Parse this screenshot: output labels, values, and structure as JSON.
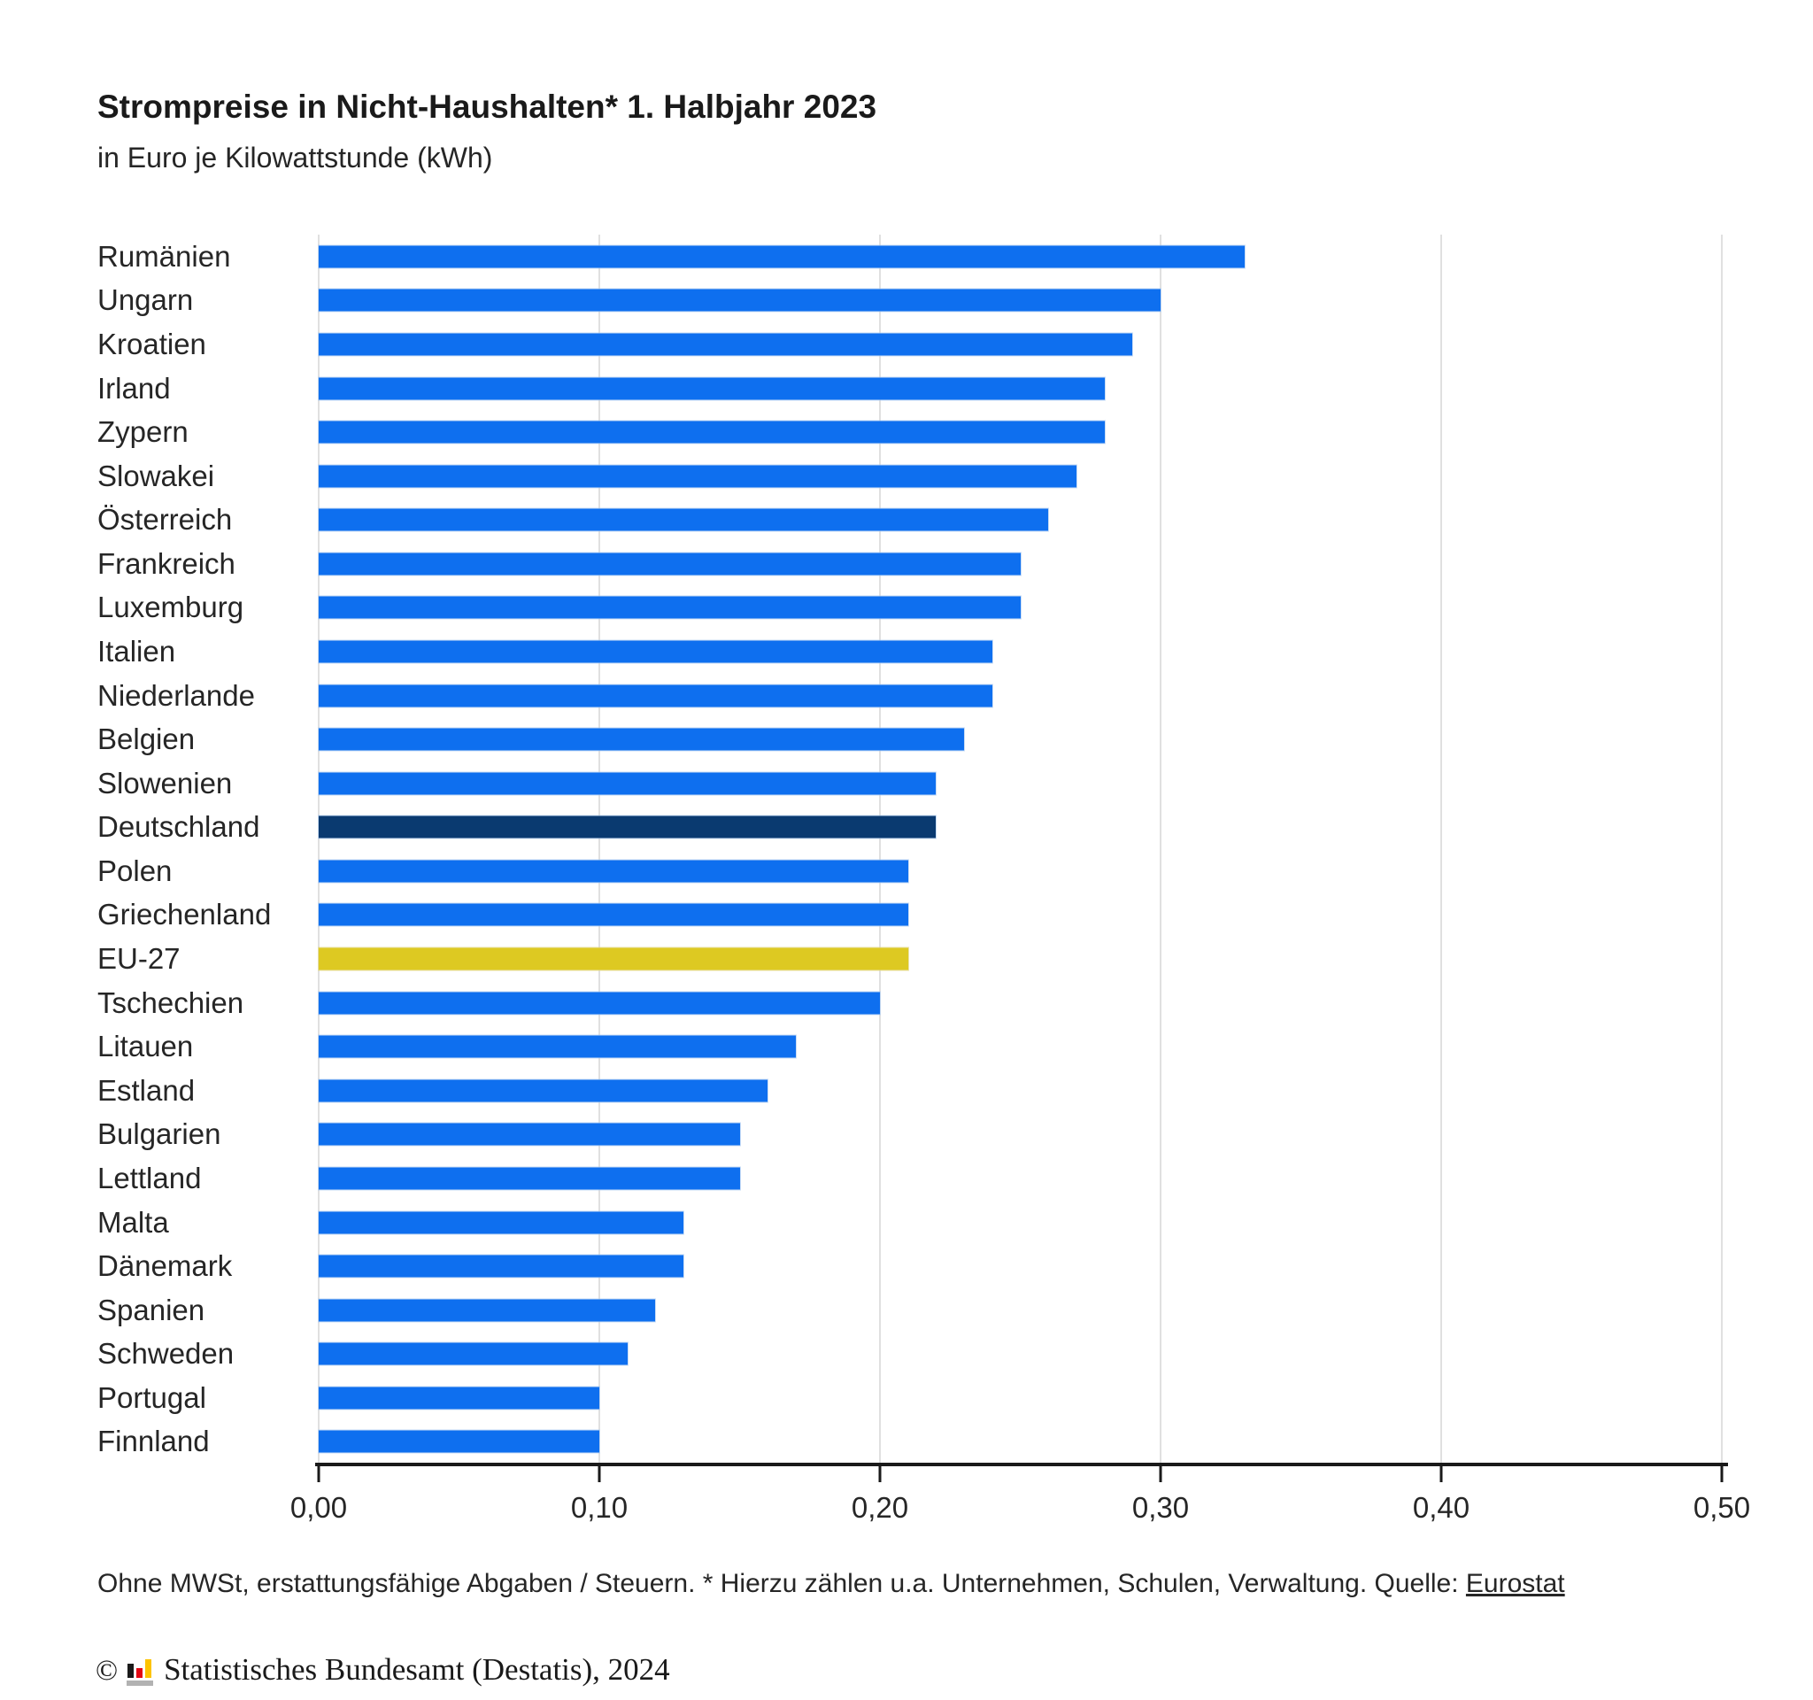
{
  "title": "Strompreise in Nicht-Haushalten* 1. Halbjahr 2023",
  "subtitle": "in Euro je Kilowattstunde (kWh)",
  "footnote": {
    "text": "Ohne MWSt, erstattungsfähige Abgaben / Steuern. * Hierzu zählen u.a. Unternehmen, Schulen, Verwaltung. Quelle: ",
    "link_label": "Eurostat"
  },
  "copyright": {
    "symbol": "©",
    "text": "Statistisches Bundesamt (Destatis), 2024"
  },
  "colors": {
    "bar_default": "#0e6fef",
    "bar_germany": "#0a3a70",
    "bar_eu27": "#ddc922",
    "gridline": "#e0e0e0",
    "axis": "#1a1a1a",
    "text": "#262626",
    "logo_black": "#1a1a1a",
    "logo_red": "#e30613",
    "logo_gold": "#fdc300",
    "logo_grey": "#b2b2b2"
  },
  "chart_data": {
    "type": "bar",
    "orientation": "horizontal",
    "title": "Strompreise in Nicht-Haushalten* 1. Halbjahr 2023",
    "xlabel": "Euro je Kilowattstunde (kWh)",
    "xlim": [
      0,
      0.5
    ],
    "grid": true,
    "legend": false,
    "categories": [
      "Rumänien",
      "Ungarn",
      "Kroatien",
      "Irland",
      "Zypern",
      "Slowakei",
      "Österreich",
      "Frankreich",
      "Luxemburg",
      "Italien",
      "Niederlande",
      "Belgien",
      "Slowenien",
      "Deutschland",
      "Polen",
      "Griechenland",
      "EU-27",
      "Tschechien",
      "Litauen",
      "Estland",
      "Bulgarien",
      "Lettland",
      "Malta",
      "Dänemark",
      "Spanien",
      "Schweden",
      "Portugal",
      "Finnland"
    ],
    "values": [
      0.33,
      0.3,
      0.29,
      0.28,
      0.28,
      0.27,
      0.26,
      0.25,
      0.25,
      0.24,
      0.24,
      0.23,
      0.22,
      0.22,
      0.21,
      0.21,
      0.21,
      0.2,
      0.17,
      0.16,
      0.15,
      0.15,
      0.13,
      0.13,
      0.12,
      0.11,
      0.1,
      0.1
    ],
    "highlighted_bars": {
      "Deutschland": "bar_germany",
      "EU-27": "bar_eu27"
    },
    "x_ticks": {
      "values": [
        0,
        0.1,
        0.2,
        0.3,
        0.4,
        0.5
      ],
      "labels": [
        "0,00",
        "0,10",
        "0,20",
        "0,30",
        "0,40",
        "0,50"
      ]
    }
  }
}
